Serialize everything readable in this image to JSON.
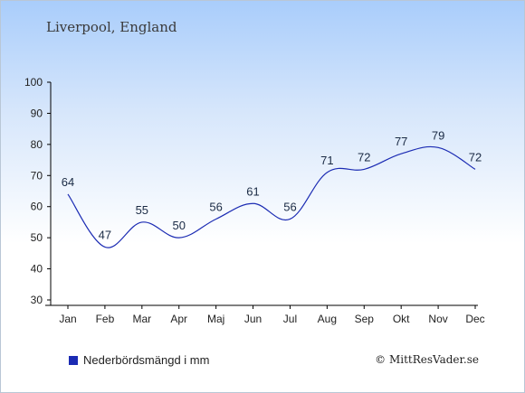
{
  "header": {
    "title": "Liverpool, England"
  },
  "legend": {
    "label": "Nederbördsmängd i mm"
  },
  "footer": {
    "copyright": "© MittResVader.se"
  },
  "colors": {
    "series": "#1b2bb3",
    "axis": "#000000",
    "label": "#1a2a44"
  },
  "chart_data": {
    "type": "line",
    "categories": [
      "Jan",
      "Feb",
      "Mar",
      "Apr",
      "Maj",
      "Jun",
      "Jul",
      "Aug",
      "Sep",
      "Okt",
      "Nov",
      "Dec"
    ],
    "series": [
      {
        "name": "Nederbördsmängd i mm",
        "values": [
          64,
          47,
          55,
          50,
          56,
          61,
          56,
          71,
          72,
          77,
          79,
          72
        ]
      }
    ],
    "ylim": [
      30,
      100
    ],
    "yticks": [
      30,
      40,
      50,
      60,
      70,
      80,
      90,
      100
    ],
    "grid": false,
    "legend": "bottom-left"
  }
}
